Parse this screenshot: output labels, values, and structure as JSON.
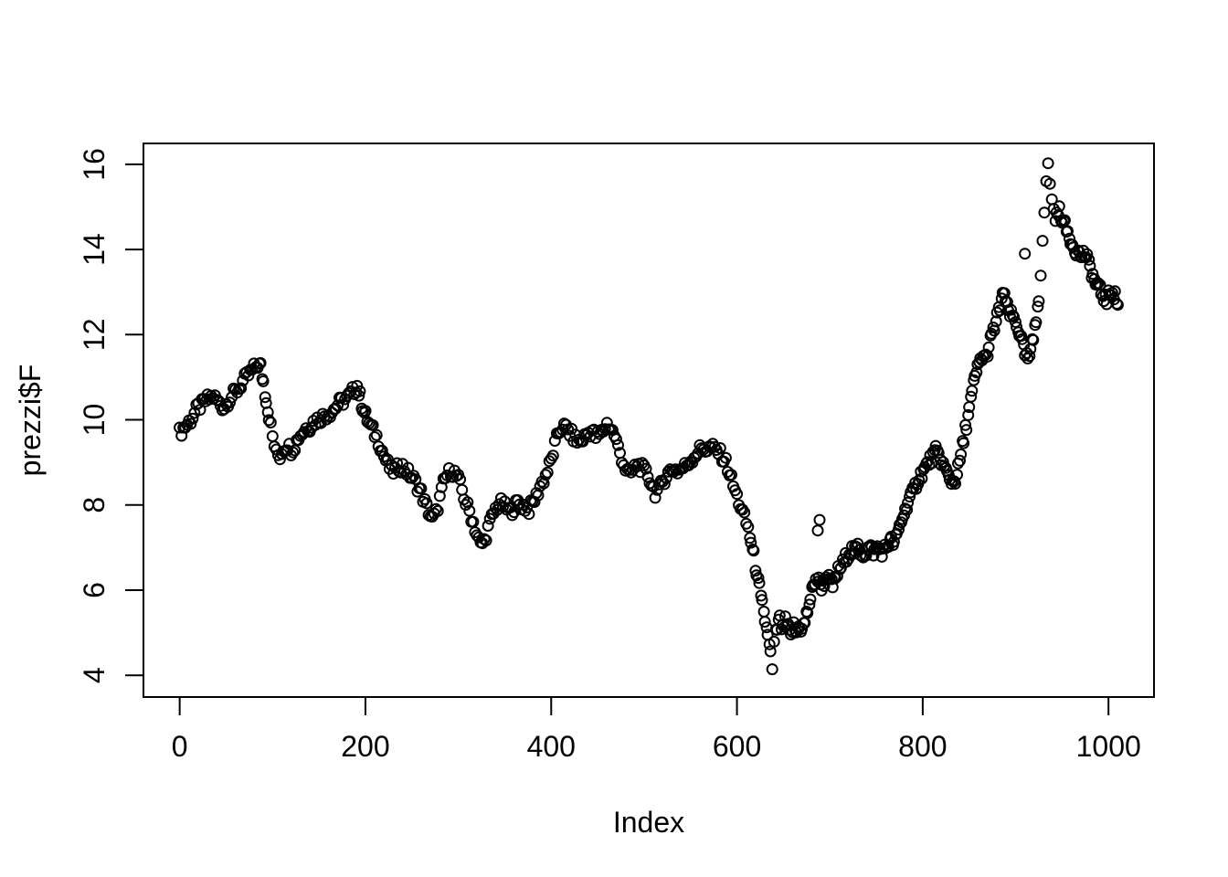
{
  "page": {
    "background": "#ffffff"
  },
  "chart_data": {
    "type": "scatter",
    "title": "",
    "xlabel": "Index",
    "ylabel": "prezzi$F",
    "marker": "open-circle",
    "grid": false,
    "legend": null,
    "colors": {
      "background": "#ffffff",
      "points": "#000000",
      "axis": "#000000",
      "text": "#000000"
    },
    "x_axis": {
      "label": "Index",
      "ticks": [
        "0",
        "200",
        "400",
        "600",
        "800",
        "1000"
      ],
      "tick_values": [
        0,
        200,
        400,
        600,
        800,
        1000
      ]
    },
    "y_axis": {
      "label": "prezzi$F",
      "ticks": [
        "4",
        "6",
        "8",
        "10",
        "12",
        "14",
        "16"
      ],
      "tick_values": [
        4,
        6,
        8,
        10,
        12,
        14,
        16
      ]
    },
    "xlim": [
      -39,
      1049
    ],
    "ylim": [
      3.49,
      16.49
    ],
    "series": [
      {
        "name": "prezzi$F",
        "points": [
          [
            0,
            9.7
          ],
          [
            4,
            9.8
          ],
          [
            8,
            9.9
          ],
          [
            12,
            10.0
          ],
          [
            16,
            10.15
          ],
          [
            20,
            10.3
          ],
          [
            24,
            10.35
          ],
          [
            28,
            10.45
          ],
          [
            32,
            10.5
          ],
          [
            36,
            10.55
          ],
          [
            40,
            10.45
          ],
          [
            44,
            10.35
          ],
          [
            48,
            10.3
          ],
          [
            52,
            10.45
          ],
          [
            56,
            10.55
          ],
          [
            60,
            10.65
          ],
          [
            64,
            10.75
          ],
          [
            68,
            10.9
          ],
          [
            72,
            11.0
          ],
          [
            76,
            11.1
          ],
          [
            80,
            11.2
          ],
          [
            84,
            11.3
          ],
          [
            87,
            11.25
          ],
          [
            90,
            10.9
          ],
          [
            93,
            10.5
          ],
          [
            96,
            10.1
          ],
          [
            100,
            9.6
          ],
          [
            104,
            9.2
          ],
          [
            108,
            9.15
          ],
          [
            112,
            9.35
          ],
          [
            116,
            9.4
          ],
          [
            120,
            9.3
          ],
          [
            124,
            9.4
          ],
          [
            128,
            9.6
          ],
          [
            132,
            9.7
          ],
          [
            136,
            9.8
          ],
          [
            140,
            9.85
          ],
          [
            144,
            9.95
          ],
          [
            148,
            10.0
          ],
          [
            152,
            10.05
          ],
          [
            156,
            10.1
          ],
          [
            160,
            10.15
          ],
          [
            164,
            10.2
          ],
          [
            168,
            10.3
          ],
          [
            172,
            10.4
          ],
          [
            176,
            10.45
          ],
          [
            180,
            10.5
          ],
          [
            184,
            10.6
          ],
          [
            188,
            10.7
          ],
          [
            191,
            10.8
          ],
          [
            194,
            10.55
          ],
          [
            197,
            10.3
          ],
          [
            200,
            10.1
          ],
          [
            204,
            9.9
          ],
          [
            208,
            9.75
          ],
          [
            212,
            9.6
          ],
          [
            216,
            9.4
          ],
          [
            220,
            9.15
          ],
          [
            224,
            8.95
          ],
          [
            228,
            8.8
          ],
          [
            232,
            8.8
          ],
          [
            236,
            8.9
          ],
          [
            240,
            8.9
          ],
          [
            244,
            8.8
          ],
          [
            248,
            8.7
          ],
          [
            252,
            8.6
          ],
          [
            256,
            8.45
          ],
          [
            260,
            8.3
          ],
          [
            264,
            8.05
          ],
          [
            268,
            7.85
          ],
          [
            272,
            7.65
          ],
          [
            276,
            7.8
          ],
          [
            280,
            8.15
          ],
          [
            284,
            8.5
          ],
          [
            288,
            8.7
          ],
          [
            292,
            8.8
          ],
          [
            296,
            8.75
          ],
          [
            300,
            8.6
          ],
          [
            304,
            8.35
          ],
          [
            308,
            8.05
          ],
          [
            312,
            7.85
          ],
          [
            316,
            7.6
          ],
          [
            320,
            7.3
          ],
          [
            324,
            7.05
          ],
          [
            328,
            7.15
          ],
          [
            332,
            7.45
          ],
          [
            336,
            7.7
          ],
          [
            340,
            7.9
          ],
          [
            344,
            8.05
          ],
          [
            348,
            8.0
          ],
          [
            352,
            7.9
          ],
          [
            356,
            7.85
          ],
          [
            360,
            7.95
          ],
          [
            364,
            8.05
          ],
          [
            368,
            8.0
          ],
          [
            372,
            7.95
          ],
          [
            376,
            7.9
          ],
          [
            380,
            8.05
          ],
          [
            384,
            8.2
          ],
          [
            388,
            8.45
          ],
          [
            392,
            8.6
          ],
          [
            396,
            8.8
          ],
          [
            400,
            9.05
          ],
          [
            404,
            9.4
          ],
          [
            408,
            9.7
          ],
          [
            412,
            9.85
          ],
          [
            416,
            9.8
          ],
          [
            420,
            9.7
          ],
          [
            424,
            9.6
          ],
          [
            428,
            9.5
          ],
          [
            432,
            9.5
          ],
          [
            436,
            9.6
          ],
          [
            440,
            9.7
          ],
          [
            444,
            9.75
          ],
          [
            448,
            9.6
          ],
          [
            452,
            9.65
          ],
          [
            456,
            9.75
          ],
          [
            460,
            9.9
          ],
          [
            464,
            9.8
          ],
          [
            468,
            9.65
          ],
          [
            472,
            9.35
          ],
          [
            476,
            9.1
          ],
          [
            480,
            8.85
          ],
          [
            484,
            8.7
          ],
          [
            488,
            8.8
          ],
          [
            492,
            8.95
          ],
          [
            496,
            8.9
          ],
          [
            500,
            8.8
          ],
          [
            504,
            8.7
          ],
          [
            508,
            8.5
          ],
          [
            512,
            8.3
          ],
          [
            516,
            8.35
          ],
          [
            520,
            8.55
          ],
          [
            524,
            8.7
          ],
          [
            528,
            8.8
          ],
          [
            532,
            8.85
          ],
          [
            536,
            8.8
          ],
          [
            540,
            8.85
          ],
          [
            544,
            8.9
          ],
          [
            548,
            9.0
          ],
          [
            552,
            9.1
          ],
          [
            556,
            9.2
          ],
          [
            560,
            9.3
          ],
          [
            564,
            9.35
          ],
          [
            568,
            9.3
          ],
          [
            572,
            9.35
          ],
          [
            576,
            9.3
          ],
          [
            580,
            9.25
          ],
          [
            584,
            9.15
          ],
          [
            588,
            9.0
          ],
          [
            592,
            8.75
          ],
          [
            596,
            8.45
          ],
          [
            600,
            8.2
          ],
          [
            604,
            7.95
          ],
          [
            608,
            7.7
          ],
          [
            612,
            7.45
          ],
          [
            615,
            7.15
          ],
          [
            618,
            6.8
          ],
          [
            621,
            6.45
          ],
          [
            624,
            6.05
          ],
          [
            627,
            5.65
          ],
          [
            630,
            5.3
          ],
          [
            633,
            5.0
          ],
          [
            636,
            4.5
          ],
          [
            638,
            4.1
          ],
          [
            640,
            4.7
          ],
          [
            643,
            5.1
          ],
          [
            646,
            5.3
          ],
          [
            649,
            5.05
          ],
          [
            652,
            5.25
          ],
          [
            655,
            5.1
          ],
          [
            658,
            4.9
          ],
          [
            661,
            5.15
          ],
          [
            664,
            5.0
          ],
          [
            667,
            5.2
          ],
          [
            670,
            5.05
          ],
          [
            673,
            5.25
          ],
          [
            676,
            5.5
          ],
          [
            679,
            5.8
          ],
          [
            682,
            6.05
          ],
          [
            685,
            6.3
          ],
          [
            688,
            6.2
          ],
          [
            691,
            6.1
          ],
          [
            694,
            6.2
          ],
          [
            697,
            6.35
          ],
          [
            700,
            6.2
          ],
          [
            703,
            6.1
          ],
          [
            706,
            6.25
          ],
          [
            709,
            6.45
          ],
          [
            712,
            6.55
          ],
          [
            715,
            6.65
          ],
          [
            718,
            6.8
          ],
          [
            721,
            6.9
          ],
          [
            724,
            6.95
          ],
          [
            727,
            6.9
          ],
          [
            730,
            7.0
          ],
          [
            733,
            6.9
          ],
          [
            736,
            6.85
          ],
          [
            739,
            6.9
          ],
          [
            742,
            7.0
          ],
          [
            745,
            6.95
          ],
          [
            748,
            6.9
          ],
          [
            751,
            7.0
          ],
          [
            754,
            6.95
          ],
          [
            757,
            6.9
          ],
          [
            760,
            7.0
          ],
          [
            763,
            7.1
          ],
          [
            766,
            7.15
          ],
          [
            769,
            7.1
          ],
          [
            772,
            7.25
          ],
          [
            775,
            7.5
          ],
          [
            778,
            7.7
          ],
          [
            781,
            7.85
          ],
          [
            784,
            8.1
          ],
          [
            787,
            8.2
          ],
          [
            790,
            8.3
          ],
          [
            793,
            8.5
          ],
          [
            796,
            8.65
          ],
          [
            799,
            8.75
          ],
          [
            802,
            8.85
          ],
          [
            805,
            8.95
          ],
          [
            808,
            9.05
          ],
          [
            811,
            9.15
          ],
          [
            814,
            9.25
          ],
          [
            817,
            9.15
          ],
          [
            820,
            9.05
          ],
          [
            823,
            8.9
          ],
          [
            826,
            8.75
          ],
          [
            829,
            8.6
          ],
          [
            832,
            8.55
          ],
          [
            835,
            8.6
          ],
          [
            838,
            8.85
          ],
          [
            841,
            9.15
          ],
          [
            844,
            9.5
          ],
          [
            847,
            9.9
          ],
          [
            850,
            10.25
          ],
          [
            853,
            10.6
          ],
          [
            856,
            10.95
          ],
          [
            859,
            11.2
          ],
          [
            862,
            11.4
          ],
          [
            865,
            11.5
          ],
          [
            868,
            11.45
          ],
          [
            871,
            11.7
          ],
          [
            874,
            11.95
          ],
          [
            877,
            12.15
          ],
          [
            880,
            12.4
          ],
          [
            883,
            12.65
          ],
          [
            886,
            12.95
          ],
          [
            889,
            12.8
          ],
          [
            892,
            12.55
          ],
          [
            895,
            12.45
          ],
          [
            898,
            12.4
          ],
          [
            901,
            12.25
          ],
          [
            904,
            12.05
          ],
          [
            907,
            11.8
          ],
          [
            910,
            11.55
          ],
          [
            913,
            11.4
          ],
          [
            916,
            11.55
          ],
          [
            919,
            11.9
          ],
          [
            922,
            12.4
          ],
          [
            925,
            12.9
          ],
          [
            927,
            13.4
          ],
          [
            929,
            14.1
          ],
          [
            931,
            14.9
          ],
          [
            933,
            15.6
          ],
          [
            935,
            15.95
          ],
          [
            937,
            15.6
          ],
          [
            939,
            15.2
          ],
          [
            941,
            14.9
          ],
          [
            944,
            14.75
          ],
          [
            947,
            14.9
          ],
          [
            950,
            14.75
          ],
          [
            953,
            14.55
          ],
          [
            956,
            14.4
          ],
          [
            959,
            14.25
          ],
          [
            962,
            14.1
          ],
          [
            965,
            14.0
          ],
          [
            968,
            13.9
          ],
          [
            971,
            13.85
          ],
          [
            974,
            13.9
          ],
          [
            977,
            13.75
          ],
          [
            980,
            13.6
          ],
          [
            983,
            13.4
          ],
          [
            986,
            13.2
          ],
          [
            989,
            13.1
          ],
          [
            992,
            13.0
          ],
          [
            995,
            12.9
          ],
          [
            998,
            12.8
          ],
          [
            1001,
            12.95
          ],
          [
            1004,
            13.05
          ],
          [
            1007,
            12.9
          ],
          [
            1010,
            12.7
          ]
        ]
      }
    ],
    "outlier_points": [
      [
        687,
        7.4
      ],
      [
        689,
        7.65
      ],
      [
        910,
        13.9
      ]
    ]
  }
}
